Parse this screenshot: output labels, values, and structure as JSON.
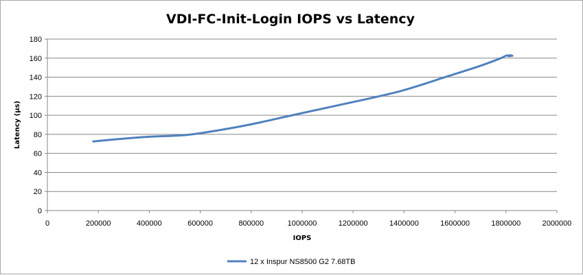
{
  "chart_data": {
    "type": "line",
    "title": "VDI-FC-Init-Login IOPS vs Latency",
    "xlabel": "IOPS",
    "ylabel": "Latency (μs)",
    "xlim": [
      0,
      2000000
    ],
    "ylim": [
      0,
      180
    ],
    "xticks": [
      0,
      200000,
      400000,
      600000,
      800000,
      1000000,
      1200000,
      1400000,
      1600000,
      1800000,
      2000000
    ],
    "yticks": [
      0,
      20,
      40,
      60,
      80,
      100,
      120,
      140,
      160,
      180
    ],
    "grid": true,
    "legend_position": "bottom",
    "series": [
      {
        "name": "12 x Inspur NS8500 G2 7.68TB",
        "color": "#4f81bd",
        "x": [
          180000,
          300000,
          400000,
          530000,
          620000,
          790000,
          960000,
          1150000,
          1380000,
          1560000,
          1700000,
          1780000,
          1800000,
          1815000,
          1825000,
          1810000
        ],
        "y": [
          72.5,
          75.5,
          77.5,
          79,
          82,
          90,
          100,
          111,
          125,
          140,
          152,
          160,
          162.5,
          163,
          162.5,
          162
        ]
      }
    ]
  }
}
